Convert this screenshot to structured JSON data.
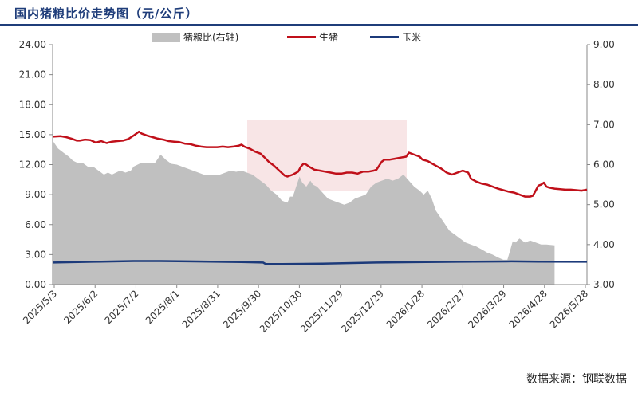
{
  "title": "国内猪粮比价走势图（元/公斤）",
  "source": "数据来源：钢联数据",
  "chart_data": {
    "type": "line",
    "title": "国内猪粮比价走势图（元/公斤）",
    "x_ticks": [
      "2025/5/3",
      "2025/6/2",
      "2025/7/2",
      "2025/8/1",
      "2025/8/31",
      "2025/9/30",
      "2025/10/30",
      "2025/11/29",
      "2025/12/29",
      "2026/1/28",
      "2026/2/27",
      "2026/3/29",
      "2026/4/28",
      "2026/5/28"
    ],
    "y_left": {
      "min": 0,
      "max": 24,
      "ticks": [
        "0.00",
        "3.00",
        "6.00",
        "9.00",
        "12.00",
        "15.00",
        "18.00",
        "21.00",
        "24.00"
      ]
    },
    "y_right": {
      "min": 3,
      "max": 9,
      "ticks": [
        "3.00",
        "4.00",
        "5.00",
        "6.00",
        "7.00",
        "8.00",
        "9.00"
      ]
    },
    "grid": false,
    "legend_position": "top",
    "series": [
      {
        "name": "猪粮比(右轴)",
        "kind": "area",
        "axis": "right",
        "color": "#c0c0c0",
        "points": [
          [
            0,
            6.6
          ],
          [
            4,
            6.4
          ],
          [
            8,
            6.3
          ],
          [
            12,
            6.2
          ],
          [
            15,
            6.1
          ],
          [
            18,
            6.05
          ],
          [
            22,
            6.05
          ],
          [
            26,
            5.95
          ],
          [
            30,
            5.95
          ],
          [
            34,
            5.85
          ],
          [
            38,
            5.75
          ],
          [
            41,
            5.8
          ],
          [
            44,
            5.75
          ],
          [
            47,
            5.8
          ],
          [
            50,
            5.85
          ],
          [
            54,
            5.8
          ],
          [
            58,
            5.85
          ],
          [
            60,
            5.95
          ],
          [
            63,
            6.0
          ],
          [
            66,
            6.05
          ],
          [
            70,
            6.05
          ],
          [
            72,
            6.05
          ],
          [
            76,
            6.05
          ],
          [
            80,
            6.25
          ],
          [
            84,
            6.12
          ],
          [
            88,
            6.02
          ],
          [
            92,
            6.0
          ],
          [
            96,
            5.95
          ],
          [
            100,
            5.9
          ],
          [
            104,
            5.85
          ],
          [
            108,
            5.8
          ],
          [
            112,
            5.75
          ],
          [
            116,
            5.75
          ],
          [
            120,
            5.75
          ],
          [
            124,
            5.75
          ],
          [
            128,
            5.8
          ],
          [
            132,
            5.85
          ],
          [
            136,
            5.82
          ],
          [
            140,
            5.85
          ],
          [
            144,
            5.8
          ],
          [
            148,
            5.75
          ],
          [
            150,
            5.7
          ],
          [
            154,
            5.6
          ],
          [
            158,
            5.5
          ],
          [
            162,
            5.35
          ],
          [
            166,
            5.25
          ],
          [
            170,
            5.1
          ],
          [
            174,
            5.05
          ],
          [
            176,
            5.2
          ],
          [
            178,
            5.2
          ],
          [
            181,
            5.5
          ],
          [
            183,
            5.7
          ],
          [
            185,
            5.55
          ],
          [
            188,
            5.45
          ],
          [
            191,
            5.6
          ],
          [
            193,
            5.5
          ],
          [
            196,
            5.45
          ],
          [
            200,
            5.3
          ],
          [
            204,
            5.15
          ],
          [
            208,
            5.1
          ],
          [
            212,
            5.05
          ],
          [
            216,
            5.0
          ],
          [
            220,
            5.05
          ],
          [
            224,
            5.15
          ],
          [
            228,
            5.2
          ],
          [
            232,
            5.25
          ],
          [
            236,
            5.45
          ],
          [
            240,
            5.55
          ],
          [
            244,
            5.6
          ],
          [
            248,
            5.65
          ],
          [
            252,
            5.6
          ],
          [
            256,
            5.65
          ],
          [
            260,
            5.75
          ],
          [
            264,
            5.6
          ],
          [
            268,
            5.45
          ],
          [
            272,
            5.35
          ],
          [
            275,
            5.25
          ],
          [
            278,
            5.35
          ],
          [
            281,
            5.15
          ],
          [
            284,
            4.85
          ],
          [
            287,
            4.7
          ],
          [
            290,
            4.55
          ],
          [
            294,
            4.35
          ],
          [
            298,
            4.25
          ],
          [
            302,
            4.15
          ],
          [
            306,
            4.05
          ],
          [
            310,
            4.0
          ],
          [
            314,
            3.95
          ],
          [
            318,
            3.88
          ],
          [
            322,
            3.8
          ],
          [
            326,
            3.75
          ],
          [
            330,
            3.68
          ],
          [
            334,
            3.62
          ],
          [
            337,
            3.62
          ],
          [
            339,
            3.85
          ],
          [
            341,
            4.08
          ],
          [
            343,
            4.05
          ],
          [
            346,
            4.15
          ],
          [
            350,
            4.05
          ],
          [
            354,
            4.1
          ],
          [
            358,
            4.05
          ],
          [
            362,
            4.0
          ],
          [
            366,
            4.0
          ],
          [
            372,
            3.98
          ]
        ]
      },
      {
        "name": "生猪",
        "kind": "line",
        "axis": "left",
        "color": "#c0101a",
        "points": [
          [
            0,
            14.8
          ],
          [
            6,
            14.85
          ],
          [
            10,
            14.75
          ],
          [
            14,
            14.6
          ],
          [
            18,
            14.4
          ],
          [
            20,
            14.4
          ],
          [
            24,
            14.5
          ],
          [
            28,
            14.45
          ],
          [
            32,
            14.2
          ],
          [
            36,
            14.35
          ],
          [
            40,
            14.15
          ],
          [
            44,
            14.3
          ],
          [
            48,
            14.35
          ],
          [
            52,
            14.4
          ],
          [
            56,
            14.55
          ],
          [
            60,
            14.9
          ],
          [
            62,
            15.1
          ],
          [
            64,
            15.3
          ],
          [
            66,
            15.1
          ],
          [
            70,
            14.9
          ],
          [
            74,
            14.75
          ],
          [
            78,
            14.6
          ],
          [
            82,
            14.5
          ],
          [
            86,
            14.35
          ],
          [
            90,
            14.3
          ],
          [
            94,
            14.25
          ],
          [
            98,
            14.1
          ],
          [
            102,
            14.05
          ],
          [
            106,
            13.9
          ],
          [
            110,
            13.8
          ],
          [
            114,
            13.75
          ],
          [
            118,
            13.75
          ],
          [
            122,
            13.75
          ],
          [
            126,
            13.8
          ],
          [
            130,
            13.75
          ],
          [
            134,
            13.8
          ],
          [
            138,
            13.9
          ],
          [
            140,
            14.0
          ],
          [
            142,
            13.8
          ],
          [
            146,
            13.6
          ],
          [
            150,
            13.3
          ],
          [
            154,
            13.1
          ],
          [
            158,
            12.6
          ],
          [
            160,
            12.3
          ],
          [
            164,
            11.9
          ],
          [
            168,
            11.4
          ],
          [
            172,
            10.9
          ],
          [
            174,
            10.8
          ],
          [
            178,
            11.0
          ],
          [
            182,
            11.3
          ],
          [
            184,
            11.8
          ],
          [
            186,
            12.1
          ],
          [
            188,
            12.0
          ],
          [
            190,
            11.8
          ],
          [
            194,
            11.5
          ],
          [
            198,
            11.4
          ],
          [
            202,
            11.3
          ],
          [
            206,
            11.2
          ],
          [
            210,
            11.1
          ],
          [
            214,
            11.1
          ],
          [
            218,
            11.2
          ],
          [
            222,
            11.2
          ],
          [
            226,
            11.1
          ],
          [
            230,
            11.3
          ],
          [
            234,
            11.3
          ],
          [
            238,
            11.4
          ],
          [
            240,
            11.5
          ],
          [
            244,
            12.3
          ],
          [
            246,
            12.5
          ],
          [
            250,
            12.5
          ],
          [
            254,
            12.6
          ],
          [
            258,
            12.7
          ],
          [
            262,
            12.8
          ],
          [
            264,
            13.2
          ],
          [
            268,
            13.0
          ],
          [
            272,
            12.8
          ],
          [
            274,
            12.5
          ],
          [
            278,
            12.35
          ],
          [
            280,
            12.2
          ],
          [
            284,
            11.9
          ],
          [
            288,
            11.6
          ],
          [
            292,
            11.2
          ],
          [
            296,
            11.0
          ],
          [
            300,
            11.2
          ],
          [
            304,
            11.4
          ],
          [
            306,
            11.3
          ],
          [
            308,
            11.2
          ],
          [
            310,
            10.6
          ],
          [
            314,
            10.3
          ],
          [
            318,
            10.1
          ],
          [
            322,
            10.0
          ],
          [
            326,
            9.8
          ],
          [
            330,
            9.6
          ],
          [
            334,
            9.45
          ],
          [
            338,
            9.3
          ],
          [
            342,
            9.2
          ],
          [
            346,
            9.0
          ],
          [
            350,
            8.8
          ],
          [
            354,
            8.8
          ],
          [
            356,
            8.9
          ],
          [
            358,
            9.4
          ],
          [
            360,
            9.9
          ],
          [
            362,
            10.0
          ],
          [
            364,
            10.2
          ],
          [
            366,
            9.8
          ],
          [
            368,
            9.7
          ],
          [
            372,
            9.6
          ],
          [
            376,
            9.55
          ],
          [
            380,
            9.5
          ],
          [
            384,
            9.5
          ],
          [
            388,
            9.45
          ],
          [
            392,
            9.4
          ],
          [
            396,
            9.5
          ]
        ]
      },
      {
        "name": "玉米",
        "kind": "line",
        "axis": "left",
        "color": "#1c3a7a",
        "points": [
          [
            0,
            2.2
          ],
          [
            30,
            2.28
          ],
          [
            60,
            2.35
          ],
          [
            80,
            2.35
          ],
          [
            100,
            2.32
          ],
          [
            140,
            2.25
          ],
          [
            156,
            2.2
          ],
          [
            158,
            2.05
          ],
          [
            170,
            2.05
          ],
          [
            200,
            2.1
          ],
          [
            240,
            2.2
          ],
          [
            300,
            2.28
          ],
          [
            340,
            2.32
          ],
          [
            360,
            2.3
          ],
          [
            396,
            2.28
          ]
        ]
      }
    ]
  }
}
